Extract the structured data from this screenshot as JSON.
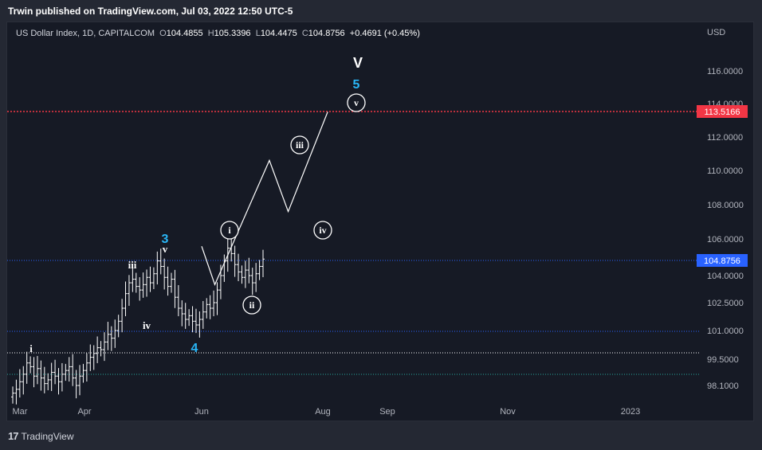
{
  "header": {
    "published": "Trwin published on TradingView.com, Jul 03, 2022 12:50 UTC-5"
  },
  "symbol": {
    "name": "US Dollar Index, 1D, CAPITALCOM",
    "o_label": "O",
    "o": "104.4855",
    "h_label": "H",
    "h": "105.3396",
    "l_label": "L",
    "l": "104.4475",
    "c_label": "C",
    "c": "104.8756",
    "change": "+0.4691 (+0.45%)"
  },
  "footer": {
    "brand": "TradingView",
    "logo": "17"
  },
  "chart_data": {
    "type": "candlestick-wave-projection",
    "currency": "USD",
    "y_ticks": [
      "116.0000",
      "114.0000",
      "112.0000",
      "110.0000",
      "108.0000",
      "106.0000",
      "104.0000",
      "102.5000",
      "101.0000",
      "99.5000",
      "98.1000"
    ],
    "x_ticks": [
      "Mar",
      "Apr",
      "Jun",
      "Aug",
      "Sep",
      "Nov",
      "2023"
    ],
    "price_labels": [
      {
        "value": "113.5166",
        "color": "#f23645"
      },
      {
        "value": "104.8756",
        "color": "#2962ff"
      }
    ],
    "horizontal_lines": [
      {
        "value": 113.5166,
        "style": "dotted",
        "color": "#f23645"
      },
      {
        "value": 104.8756,
        "style": "dotted",
        "color": "#2962ff"
      },
      {
        "value": 101.0,
        "style": "dotted",
        "color": "#2962ff"
      },
      {
        "value": 99.7,
        "style": "dotted",
        "color": "#ffffff"
      },
      {
        "value": 98.6,
        "style": "dotted",
        "color": "#26a69a"
      }
    ],
    "projection_path": [
      {
        "date": "2022-06-09",
        "price": 105.6
      },
      {
        "date": "2022-06-16",
        "price": 103.5
      },
      {
        "date": "2022-07-15",
        "price": 110.6
      },
      {
        "date": "2022-07-25",
        "price": 107.6
      },
      {
        "date": "2022-08-15",
        "price": 113.5
      }
    ],
    "wave_labels": [
      {
        "text": "i",
        "style": "plain",
        "color": "#ffffff"
      },
      {
        "text": "iii",
        "style": "plain",
        "color": "#ffffff"
      },
      {
        "text": "iv",
        "style": "plain",
        "color": "#ffffff"
      },
      {
        "text": "v",
        "style": "plain",
        "color": "#ffffff"
      },
      {
        "text": "3",
        "style": "plain",
        "color": "#29b6f6"
      },
      {
        "text": "4",
        "style": "plain",
        "color": "#29b6f6"
      },
      {
        "text": "i",
        "style": "circled",
        "color": "#ffffff"
      },
      {
        "text": "ii",
        "style": "circled",
        "color": "#ffffff"
      },
      {
        "text": "iii",
        "style": "circled",
        "color": "#ffffff"
      },
      {
        "text": "iv",
        "style": "circled",
        "color": "#ffffff"
      },
      {
        "text": "v",
        "style": "circled",
        "color": "#ffffff"
      },
      {
        "text": "5",
        "style": "plain",
        "color": "#29b6f6"
      },
      {
        "text": "V",
        "style": "plain",
        "color": "#ffffff"
      }
    ],
    "ohlc_daily_close_path": [
      97.7,
      97.9,
      98.3,
      98.7,
      99.3,
      99.1,
      98.6,
      99.0,
      98.5,
      98.2,
      98.4,
      98.8,
      98.6,
      98.3,
      98.7,
      98.9,
      99.1,
      98.5,
      98.1,
      98.6,
      98.9,
      99.3,
      99.6,
      99.8,
      100.1,
      100.0,
      100.4,
      100.8,
      100.6,
      101.0,
      101.5,
      102.2,
      103.0,
      103.6,
      103.8,
      103.4,
      103.2,
      103.5,
      103.9,
      103.6,
      104.1,
      104.8,
      104.5,
      103.9,
      103.4,
      103.8,
      102.8,
      102.2,
      101.9,
      101.6,
      101.8,
      101.5,
      101.3,
      101.6,
      102.0,
      102.4,
      102.2,
      102.5,
      103.2,
      104.0,
      104.8,
      105.5,
      105.2,
      104.6,
      104.2,
      103.9,
      104.3,
      104.0,
      103.6,
      104.1,
      104.5,
      104.9
    ]
  }
}
